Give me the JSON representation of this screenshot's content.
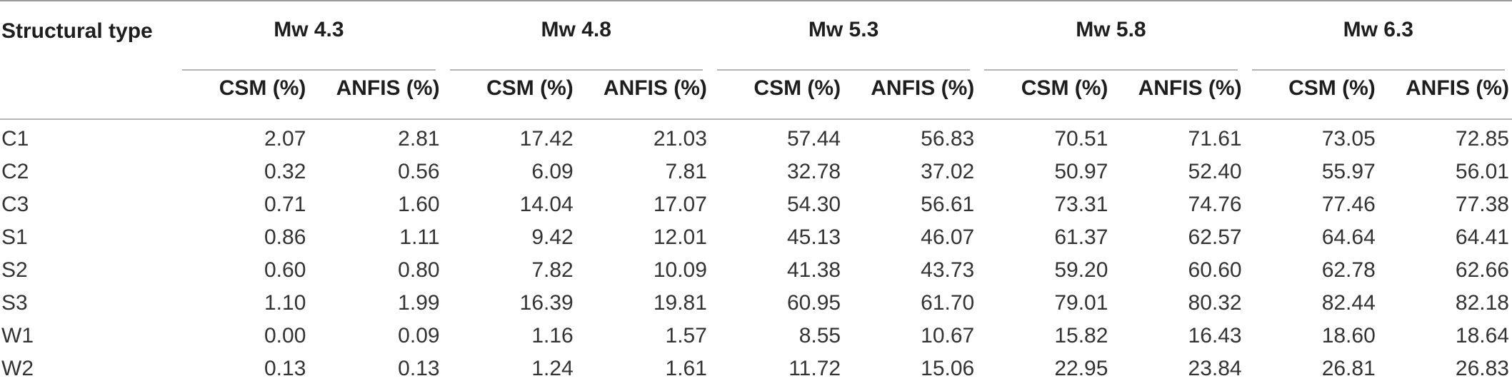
{
  "table": {
    "header_first": "Structural type",
    "groups": [
      "Mw 4.3",
      "Mw 4.8",
      "Mw 5.3",
      "Mw 5.8",
      "Mw 6.3"
    ],
    "sub_headers": [
      "CSM (%)",
      "ANFIS (%)",
      "CSM (%)",
      "ANFIS (%)",
      "CSM (%)",
      "ANFIS (%)",
      "CSM (%)",
      "ANFIS (%)",
      "CSM (%)",
      "ANFIS (%)"
    ],
    "rows": [
      {
        "type": "C1",
        "values": [
          "2.07",
          "2.81",
          "17.42",
          "21.03",
          "57.44",
          "56.83",
          "70.51",
          "71.61",
          "73.05",
          "72.85"
        ]
      },
      {
        "type": "C2",
        "values": [
          "0.32",
          "0.56",
          "6.09",
          "7.81",
          "32.78",
          "37.02",
          "50.97",
          "52.40",
          "55.97",
          "56.01"
        ]
      },
      {
        "type": "C3",
        "values": [
          "0.71",
          "1.60",
          "14.04",
          "17.07",
          "54.30",
          "56.61",
          "73.31",
          "74.76",
          "77.46",
          "77.38"
        ]
      },
      {
        "type": "S1",
        "values": [
          "0.86",
          "1.11",
          "9.42",
          "12.01",
          "45.13",
          "46.07",
          "61.37",
          "62.57",
          "64.64",
          "64.41"
        ]
      },
      {
        "type": "S2",
        "values": [
          "0.60",
          "0.80",
          "7.82",
          "10.09",
          "41.38",
          "43.73",
          "59.20",
          "60.60",
          "62.78",
          "62.66"
        ]
      },
      {
        "type": "S3",
        "values": [
          "1.10",
          "1.99",
          "16.39",
          "19.81",
          "60.95",
          "61.70",
          "79.01",
          "80.32",
          "82.44",
          "82.18"
        ]
      },
      {
        "type": "W1",
        "values": [
          "0.00",
          "0.09",
          "1.16",
          "1.57",
          "8.55",
          "10.67",
          "15.82",
          "16.43",
          "18.60",
          "18.64"
        ]
      },
      {
        "type": "W2",
        "values": [
          "0.13",
          "0.13",
          "1.24",
          "1.61",
          "11.72",
          "15.06",
          "22.95",
          "23.84",
          "26.81",
          "26.83"
        ]
      }
    ]
  }
}
